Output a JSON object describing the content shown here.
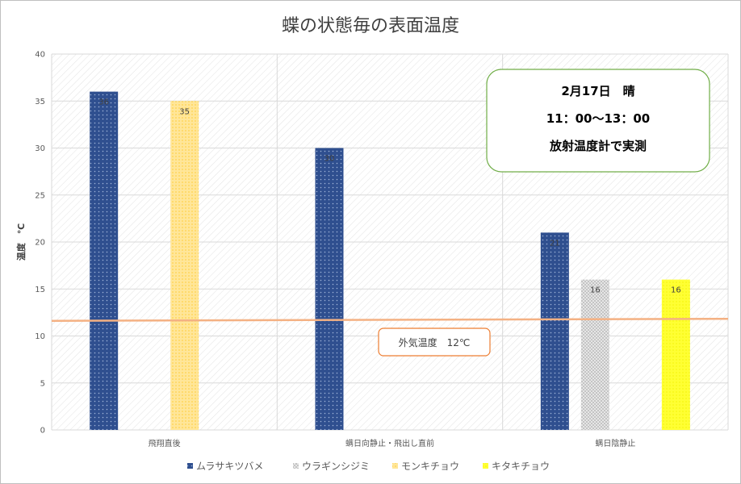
{
  "chart_data": {
    "type": "bar",
    "title": "蝶の状態毎の表面温度",
    "ylabel": "温度　℃",
    "xlabel": "",
    "ylim": [
      0,
      40
    ],
    "yticks": [
      "0",
      "5",
      "10",
      "15",
      "20",
      "25",
      "30",
      "35",
      "40"
    ],
    "categories": [
      "飛翔直後",
      "螨日向静止・飛出し直前",
      "螨日陰静止"
    ],
    "series": [
      {
        "name": "ムラサキツバメ",
        "values": [
          36,
          30,
          21
        ],
        "labels": [
          "36",
          "30",
          "21"
        ],
        "color": "#2f4f8f"
      },
      {
        "name": "ウラギンシジミ",
        "values": [
          null,
          null,
          16
        ],
        "labels": [
          "",
          "",
          "16"
        ],
        "color": "#d4d4d4"
      },
      {
        "name": "モンキチョウ",
        "values": [
          35,
          null,
          null
        ],
        "labels": [
          "35",
          "",
          ""
        ],
        "color": "#ffd966"
      },
      {
        "name": "キタキチョウ",
        "values": [
          null,
          null,
          16
        ],
        "labels": [
          "",
          "",
          "16"
        ],
        "color": "#ffff33"
      }
    ],
    "reference_line": {
      "value": 11.7,
      "color": "#f4b183"
    },
    "reference_label": "外気温度　12℃",
    "annotation_lines": [
      "2月17日　晴",
      "11：00～13：00",
      "放射温度計で実測"
    ],
    "legend_position": "bottom",
    "grid": true
  }
}
